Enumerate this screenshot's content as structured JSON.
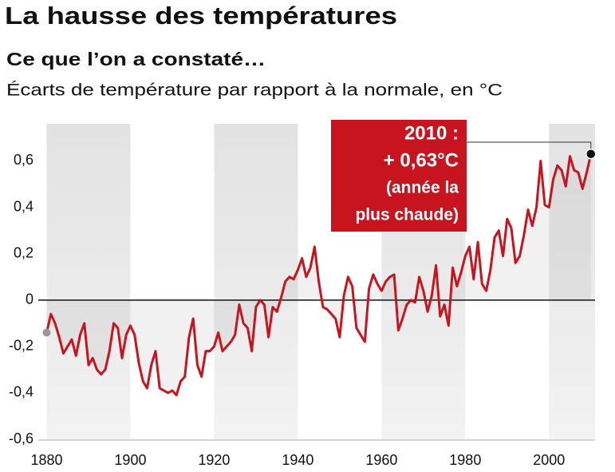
{
  "chart_data": {
    "type": "line",
    "title": "La hausse des températures",
    "subtitle": "Ce que l’on a constaté…",
    "ylabel": "Écarts de température par rapport à la normale, en °C",
    "annotation": [
      "2010 :",
      "+ 0,63°C",
      "(année la",
      "plus chaude)"
    ],
    "color": "#c8141e",
    "x": [
      1880,
      1881,
      1882,
      1883,
      1884,
      1885,
      1886,
      1887,
      1888,
      1889,
      1890,
      1891,
      1892,
      1893,
      1894,
      1895,
      1896,
      1897,
      1898,
      1899,
      1900,
      1901,
      1902,
      1903,
      1904,
      1905,
      1906,
      1907,
      1908,
      1909,
      1910,
      1911,
      1912,
      1913,
      1914,
      1915,
      1916,
      1917,
      1918,
      1919,
      1920,
      1921,
      1922,
      1923,
      1924,
      1925,
      1926,
      1927,
      1928,
      1929,
      1930,
      1931,
      1932,
      1933,
      1934,
      1935,
      1936,
      1937,
      1938,
      1939,
      1940,
      1941,
      1942,
      1943,
      1944,
      1945,
      1946,
      1947,
      1948,
      1949,
      1950,
      1951,
      1952,
      1953,
      1954,
      1955,
      1956,
      1957,
      1958,
      1959,
      1960,
      1961,
      1962,
      1963,
      1964,
      1965,
      1966,
      1967,
      1968,
      1969,
      1970,
      1971,
      1972,
      1973,
      1974,
      1975,
      1976,
      1977,
      1978,
      1979,
      1980,
      1981,
      1982,
      1983,
      1984,
      1985,
      1986,
      1987,
      1988,
      1989,
      1990,
      1991,
      1992,
      1993,
      1994,
      1995,
      1996,
      1997,
      1998,
      1999,
      2000,
      2001,
      2002,
      2003,
      2004,
      2005,
      2006,
      2007,
      2008,
      2009,
      2010
    ],
    "values": [
      -0.14,
      -0.06,
      -0.1,
      -0.16,
      -0.23,
      -0.2,
      -0.17,
      -0.24,
      -0.15,
      -0.1,
      -0.28,
      -0.25,
      -0.3,
      -0.32,
      -0.3,
      -0.22,
      -0.1,
      -0.12,
      -0.25,
      -0.15,
      -0.11,
      -0.15,
      -0.27,
      -0.35,
      -0.38,
      -0.28,
      -0.22,
      -0.38,
      -0.39,
      -0.4,
      -0.39,
      -0.41,
      -0.35,
      -0.33,
      -0.16,
      -0.08,
      -0.28,
      -0.33,
      -0.22,
      -0.22,
      -0.2,
      -0.14,
      -0.22,
      -0.2,
      -0.18,
      -0.15,
      -0.02,
      -0.1,
      -0.12,
      -0.22,
      -0.03,
      0.0,
      -0.02,
      -0.16,
      -0.03,
      -0.05,
      0.01,
      0.08,
      0.1,
      0.09,
      0.13,
      0.18,
      0.1,
      0.14,
      0.23,
      0.08,
      -0.03,
      -0.04,
      -0.06,
      -0.08,
      -0.16,
      0.02,
      0.1,
      0.06,
      -0.12,
      -0.15,
      -0.18,
      0.05,
      0.11,
      0.07,
      0.04,
      0.08,
      0.1,
      0.11,
      -0.13,
      -0.08,
      -0.02,
      0.0,
      -0.01,
      0.1,
      0.04,
      -0.05,
      0.02,
      0.15,
      -0.07,
      -0.02,
      -0.11,
      0.14,
      0.06,
      0.12,
      0.19,
      0.23,
      0.09,
      0.25,
      0.07,
      0.04,
      0.13,
      0.27,
      0.3,
      0.19,
      0.35,
      0.31,
      0.16,
      0.19,
      0.28,
      0.39,
      0.32,
      0.4,
      0.6,
      0.41,
      0.4,
      0.52,
      0.58,
      0.56,
      0.49,
      0.62,
      0.56,
      0.55,
      0.48,
      0.55,
      0.63
    ],
    "xlim": [
      1878,
      2011
    ],
    "xticks": [
      1880,
      1900,
      1920,
      1940,
      1960,
      1980,
      2000
    ],
    "ylim": [
      -0.6,
      0.76
    ],
    "yticks": [
      {
        "value": -0.6,
        "label": "-0,6"
      },
      {
        "value": -0.4,
        "label": "-0,4"
      },
      {
        "value": -0.2,
        "label": "-0,2"
      },
      0,
      {
        "value": 0.2,
        "label": "0,2"
      },
      {
        "value": 0.4,
        "label": "0,4"
      },
      {
        "value": 0.6,
        "label": "0,6"
      }
    ]
  }
}
